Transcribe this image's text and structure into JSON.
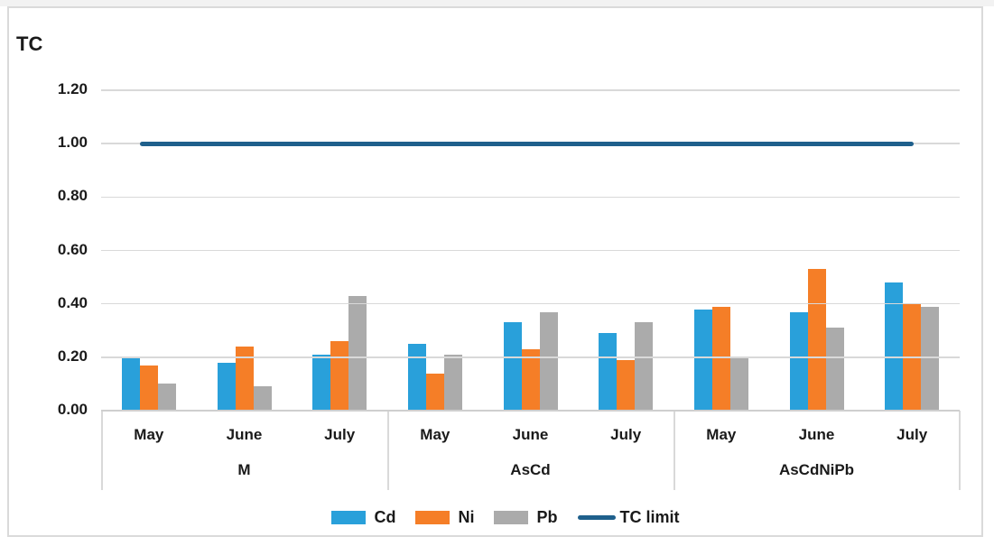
{
  "figure": {
    "title": "TC"
  },
  "chart_data": {
    "type": "bar",
    "title": "TC",
    "xlabel": "",
    "ylabel": "TC",
    "ylim": [
      0,
      1.2
    ],
    "ytick_labels": [
      "0.00",
      "0.20",
      "0.40",
      "0.60",
      "0.80",
      "1.00",
      "1.20"
    ],
    "grid": true,
    "legend_position": "bottom",
    "group_labels": [
      "M",
      "AsCd",
      "AsCdNiPb"
    ],
    "categories": [
      "May",
      "June",
      "July",
      "May",
      "June",
      "July",
      "May",
      "June",
      "July"
    ],
    "series": [
      {
        "name": "Cd",
        "color": "#29A0DA",
        "values": [
          0.2,
          0.18,
          0.21,
          0.25,
          0.33,
          0.29,
          0.38,
          0.37,
          0.48
        ]
      },
      {
        "name": "Ni",
        "color": "#F57E27",
        "values": [
          0.17,
          0.24,
          0.26,
          0.14,
          0.23,
          0.19,
          0.39,
          0.53,
          0.4
        ]
      },
      {
        "name": "Pb",
        "color": "#ABABAB",
        "values": [
          0.1,
          0.09,
          0.43,
          0.21,
          0.37,
          0.33,
          0.2,
          0.31,
          0.39
        ]
      }
    ],
    "limit_line": {
      "name": "TC limit",
      "value": 1.0,
      "color": "#1F608C"
    }
  },
  "colors": {
    "grid": "#d9d9d9",
    "frame_border": "#dadada",
    "text": "#1a1a1a",
    "background": "#ffffff"
  }
}
